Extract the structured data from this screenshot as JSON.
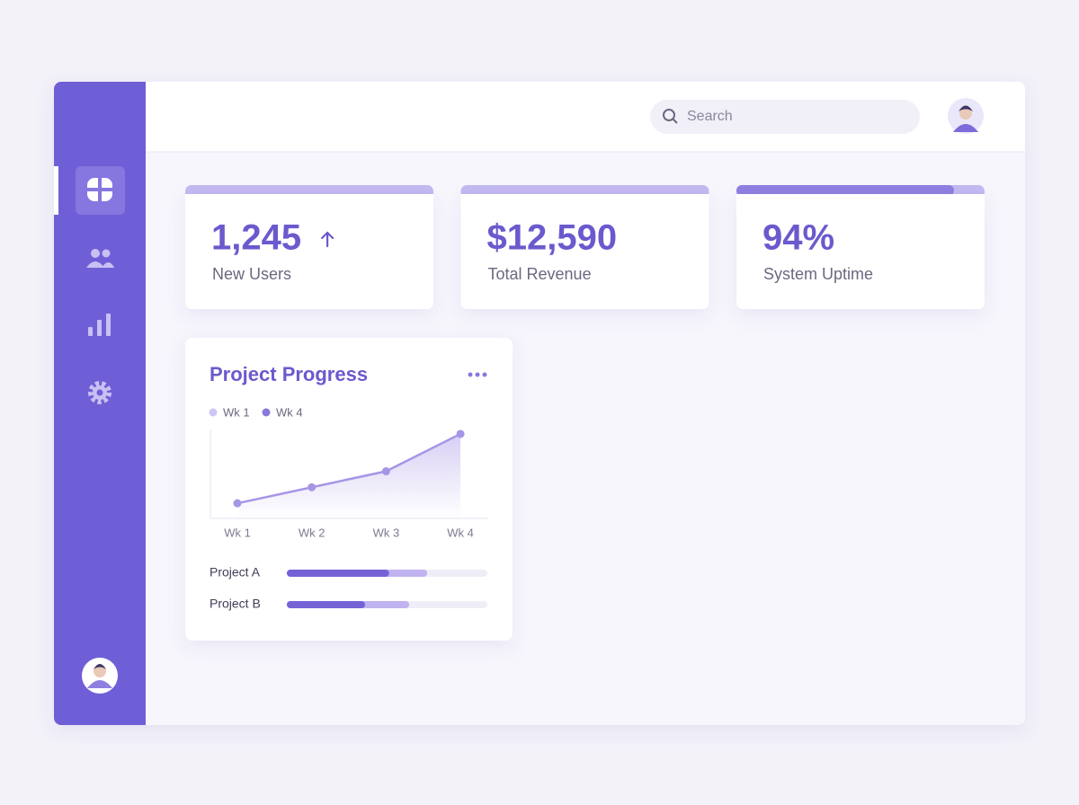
{
  "header": {
    "search_placeholder": "Search"
  },
  "stats": [
    {
      "value": "1,245",
      "label": "New Users"
    },
    {
      "value": "$12,590",
      "label": "Total Revenue"
    },
    {
      "value": "94%",
      "label": "System Uptime"
    }
  ],
  "project_card": {
    "title": "Project Progress",
    "chart_data": {
      "type": "line",
      "legend": [
        {
          "name": "Wk 1",
          "color": "#cfc6f3"
        },
        {
          "name": "Wk 4",
          "color": "#8a78dc"
        }
      ],
      "categories": [
        "Wk 1",
        "Wk 2",
        "Wk 3",
        "Wk 4"
      ],
      "series": [
        {
          "color": "#a795e6",
          "values": [
            17,
            35,
            53,
            95
          ]
        }
      ],
      "ylim": [
        0,
        100
      ]
    },
    "projects": [
      {
        "name": "Project A",
        "done": 51,
        "planned": 70
      },
      {
        "name": "Project B",
        "done": 39,
        "planned": 61
      }
    ]
  }
}
